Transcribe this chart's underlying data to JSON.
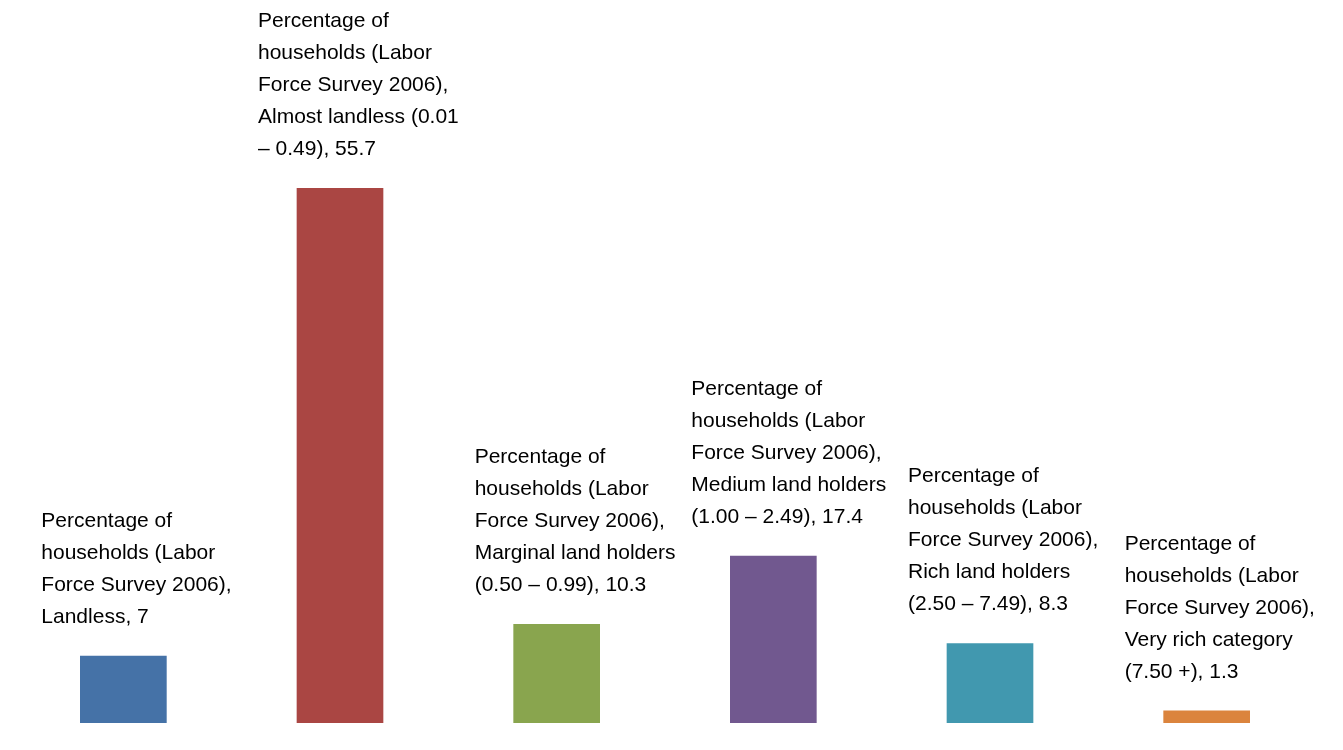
{
  "chart_data": {
    "type": "bar",
    "categories": [
      null,
      null,
      null,
      null,
      null,
      null
    ],
    "values": [
      7,
      55.7,
      10.3,
      17.4,
      8.3,
      1.3
    ],
    "colors": [
      "#4572a7",
      "#aa4643",
      "#89a54e",
      "#71588f",
      "#4198af",
      "#db843d"
    ],
    "value_labels": [
      "Percentage of households (Labor Force Survey 2006), Landless, 7",
      "Percentage of households (Labor Force Survey 2006), Almost landless (0.01 – 0.49), 55.7",
      "Percentage of households (Labor Force Survey 2006), Marginal land holders (0.50 – 0.99), 10.3",
      "Percentage of households (Labor Force Survey 2006), Medium land holders (1.00 – 2.49), 17.4",
      "Percentage of households (Labor Force Survey 2006), Rich land holders (2.50 – 7.49), 8.3",
      "Percentage of households (Labor Force Survey 2006), Very rich category (7.50 +), 1.3"
    ],
    "tick_labels": false,
    "grid": false,
    "legend": false
  }
}
